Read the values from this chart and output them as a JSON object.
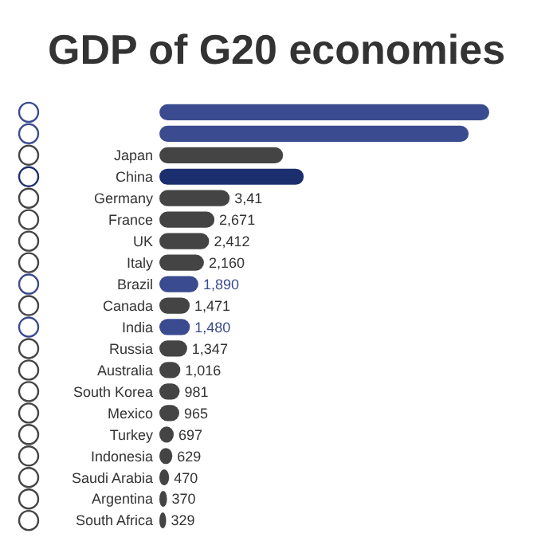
{
  "chart_data": {
    "type": "bar",
    "orientation": "horizontal",
    "title": "GDP of G20 economies",
    "categories": [
      null,
      null,
      "Japan",
      "China",
      "Germany",
      "France",
      "UK",
      "Italy",
      "Brazil",
      "Canada",
      "India",
      "Russia",
      "Australia",
      "South Korea",
      "Mexico",
      "Turkey",
      "Indonesia",
      "Saudi Arabia",
      "Argentina",
      "South Africa"
    ],
    "values": [
      16000,
      15000,
      6000,
      7000,
      3410,
      2671,
      2412,
      2160,
      1890,
      1471,
      1480,
      1347,
      1016,
      981,
      965,
      697,
      629,
      470,
      370,
      329
    ],
    "annotations": [
      {
        "text": "3,41",
        "x": 3410,
        "y": "Germany"
      }
    ],
    "value_labels": [
      null,
      null,
      null,
      null,
      null,
      "2,671",
      "2,412",
      "2,160",
      "1,890",
      "1,471",
      "1,480",
      "1,347",
      "1,016",
      "981",
      "965",
      "697",
      "629",
      "470",
      "370",
      "329"
    ],
    "colors": [
      "#3b4b8f",
      "#3b4b8f",
      "#444444",
      "#1b2e6e",
      "#444444",
      "#444444",
      "#444444",
      "#444444",
      "#3b4b8f",
      "#444444",
      "#3b4b8f",
      "#444444",
      "#444444",
      "#444444",
      "#444444",
      "#444444",
      "#444444",
      "#444444",
      "#444444",
      "#444444"
    ],
    "xlim": [
      0,
      16000
    ],
    "tick_labels": false,
    "grid": false
  }
}
